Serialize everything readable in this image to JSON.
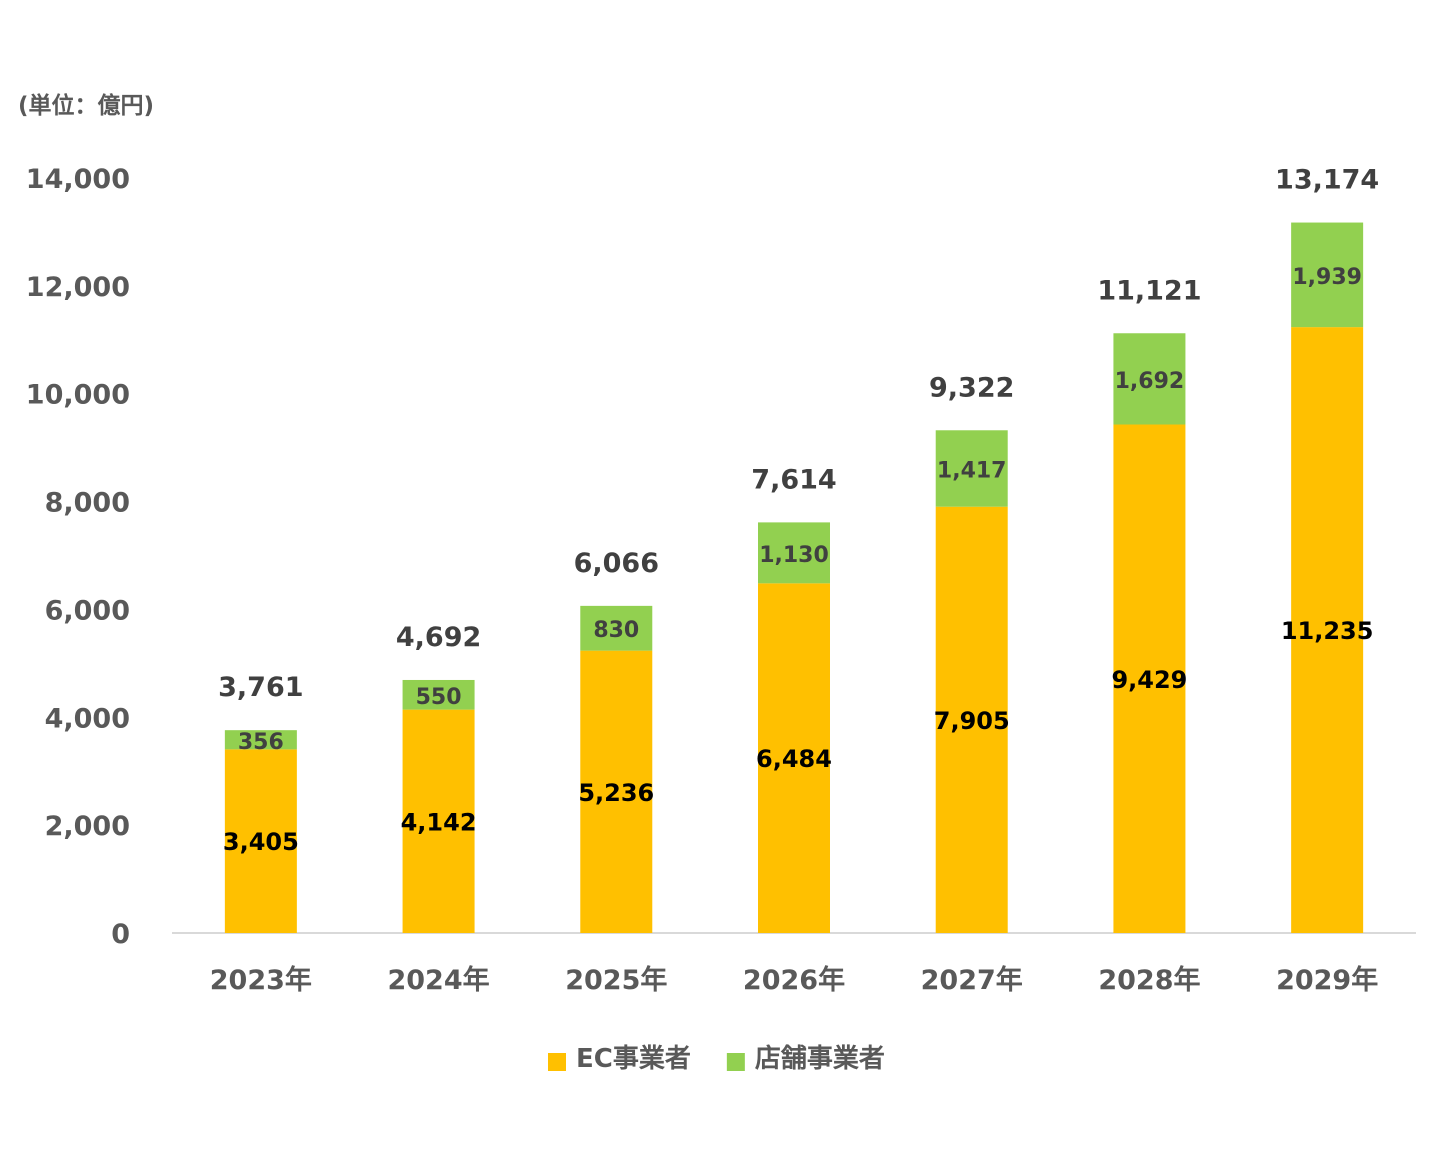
{
  "chart_data": {
    "type": "bar",
    "stacked": true,
    "unit_label": "(単位：億円)",
    "categories": [
      "2023年",
      "2024年",
      "2025年",
      "2026年",
      "2027年",
      "2028年",
      "2029年"
    ],
    "series": [
      {
        "name": "EC事業者",
        "color": "#FFC000",
        "values": [
          3405,
          4142,
          5236,
          6484,
          7905,
          9429,
          11235
        ]
      },
      {
        "name": "店舗事業者",
        "color": "#92D050",
        "values": [
          356,
          550,
          830,
          1130,
          1417,
          1692,
          1939
        ]
      }
    ],
    "totals": [
      3761,
      4692,
      6066,
      7614,
      9322,
      11121,
      13174
    ],
    "ylim": [
      0,
      14000
    ],
    "yticks": [
      0,
      2000,
      4000,
      6000,
      8000,
      10000,
      12000,
      14000
    ],
    "grid": false,
    "legend": "bottom-center"
  }
}
